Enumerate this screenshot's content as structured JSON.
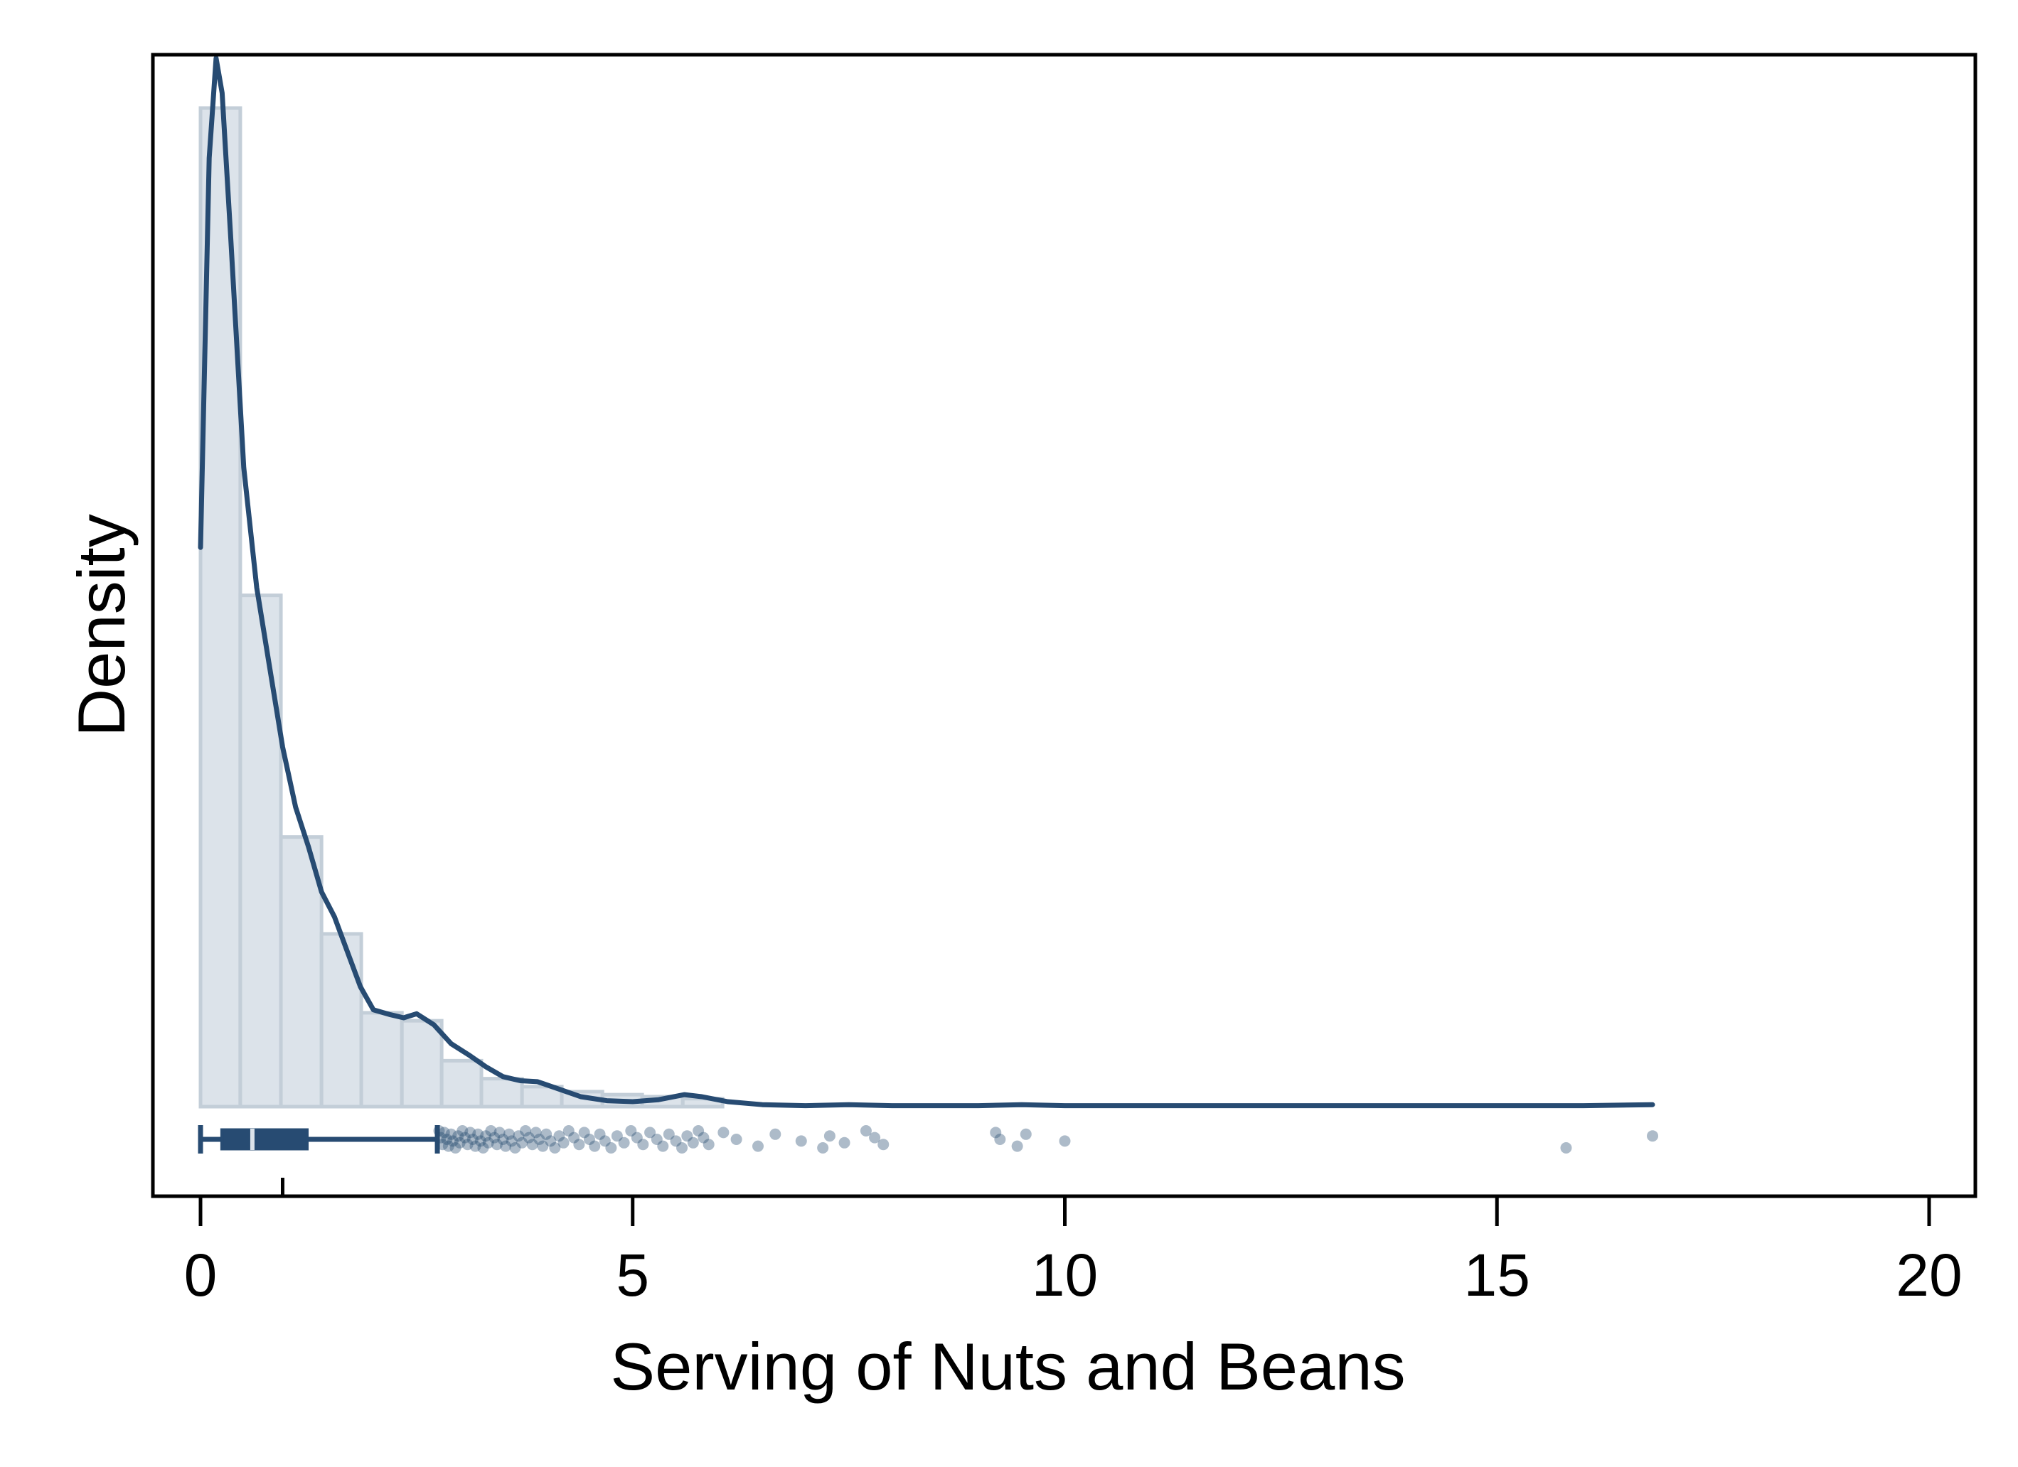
{
  "chart_data": {
    "type": "histogram",
    "title": "",
    "xlabel": "Serving of Nuts and Beans",
    "ylabel": "Density",
    "xlim": [
      -0.55,
      20.55
    ],
    "x_ticks": [
      0,
      5,
      10,
      15,
      20
    ],
    "x_tick_labels": [
      "0",
      "5",
      "10",
      "15",
      "20"
    ],
    "y_ticks_shown": false,
    "ylim": [
      0,
      1.15
    ],
    "grid": false,
    "legend": "none",
    "colors": {
      "bar_fill": "#dce3ea",
      "bar_edge": "#c3ced8",
      "line": "#274b72",
      "points": "#274b72"
    },
    "histogram_bins": {
      "edges": [
        0,
        0.46,
        0.93,
        1.4,
        1.86,
        2.33,
        2.79,
        3.25,
        3.72,
        4.18,
        4.65,
        5.11,
        5.58,
        6.04
      ],
      "densities": [
        1.0,
        0.512,
        0.27,
        0.173,
        0.094,
        0.086,
        0.046,
        0.028,
        0.02,
        0.015,
        0.012,
        0.01,
        0.008
      ]
    },
    "density_curve": {
      "x": [
        0,
        0.1,
        0.18,
        0.25,
        0.35,
        0.5,
        0.65,
        0.8,
        0.95,
        1.1,
        1.25,
        1.4,
        1.55,
        1.7,
        1.85,
        2.0,
        2.2,
        2.35,
        2.5,
        2.7,
        2.9,
        3.1,
        3.3,
        3.5,
        3.7,
        3.9,
        4.1,
        4.4,
        4.7,
        5.0,
        5.3,
        5.6,
        5.8,
        6.1,
        6.5,
        7.0,
        7.5,
        8.0,
        8.5,
        9.0,
        9.5,
        10.0,
        11,
        12,
        13,
        14,
        15,
        16,
        16.8
      ],
      "y": [
        0.56,
        0.95,
        1.05,
        1.015,
        0.87,
        0.64,
        0.52,
        0.44,
        0.36,
        0.3,
        0.26,
        0.215,
        0.19,
        0.155,
        0.12,
        0.097,
        0.092,
        0.089,
        0.093,
        0.082,
        0.063,
        0.052,
        0.04,
        0.03,
        0.026,
        0.025,
        0.019,
        0.01,
        0.006,
        0.005,
        0.007,
        0.012,
        0.01,
        0.005,
        0.002,
        0.001,
        0.002,
        0.001,
        0.001,
        0.001,
        0.002,
        0.001,
        0.001,
        0.001,
        0.001,
        0.001,
        0.001,
        0.001,
        0.002
      ]
    },
    "boxplot": {
      "min": 0.0,
      "q1": 0.25,
      "median": 0.6,
      "q3": 1.23,
      "whisker_high": 2.74,
      "outliers": [
        2.76,
        2.78,
        2.8,
        2.82,
        2.85,
        2.87,
        2.9,
        2.92,
        2.95,
        2.98,
        3.0,
        3.03,
        3.06,
        3.09,
        3.12,
        3.15,
        3.18,
        3.21,
        3.24,
        3.27,
        3.3,
        3.33,
        3.36,
        3.4,
        3.43,
        3.46,
        3.5,
        3.53,
        3.57,
        3.6,
        3.64,
        3.68,
        3.72,
        3.76,
        3.8,
        3.84,
        3.88,
        3.92,
        3.96,
        4.0,
        4.05,
        4.1,
        4.15,
        4.2,
        4.26,
        4.32,
        4.38,
        4.44,
        4.5,
        4.56,
        4.62,
        4.68,
        4.75,
        4.82,
        4.9,
        4.98,
        5.05,
        5.12,
        5.2,
        5.28,
        5.35,
        5.42,
        5.5,
        5.57,
        5.63,
        5.7,
        5.76,
        5.82,
        5.88,
        6.05,
        6.2,
        6.45,
        6.65,
        6.95,
        7.2,
        7.28,
        7.45,
        7.7,
        7.8,
        7.9,
        9.2,
        9.25,
        9.45,
        9.55,
        10.0,
        15.8,
        16.8
      ]
    },
    "rug_tick_x": 0.95
  }
}
